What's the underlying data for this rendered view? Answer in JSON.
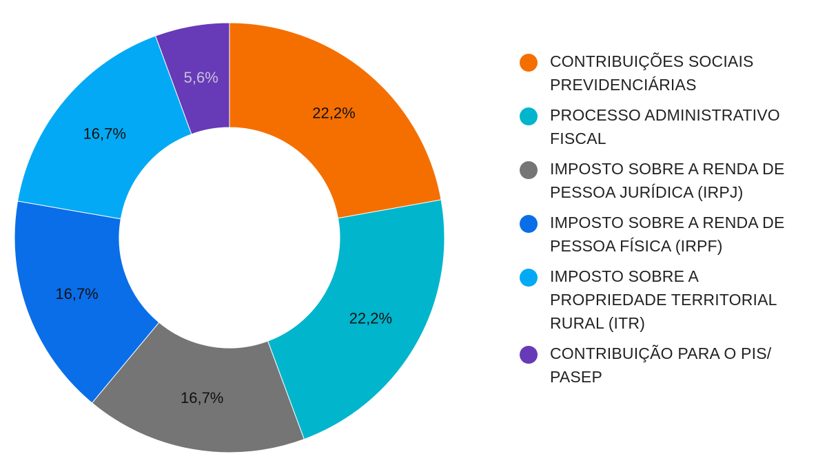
{
  "chart_data": {
    "type": "pie",
    "title": "",
    "legend_position": "right",
    "series": [
      {
        "name": "CONTRIBUIÇÕES SOCIAIS PREVIDENCIÁRIAS",
        "value": 22.2,
        "label": "22,2%",
        "color": "#f56f00",
        "label_color": "#111111"
      },
      {
        "name": "PROCESSO ADMINISTRATIVO FISCAL",
        "value": 22.2,
        "label": "22,2%",
        "color": "#00b5cc",
        "label_color": "#111111"
      },
      {
        "name": "IMPOSTO SOBRE A RENDA DE PESSOA JURÍDICA (IRPJ)",
        "value": 16.7,
        "label": "16,7%",
        "color": "#757575",
        "label_color": "#111111"
      },
      {
        "name": "IMPOSTO SOBRE A RENDA DE PESSOA FÍSICA (IRPF)",
        "value": 16.7,
        "label": "16,7%",
        "color": "#0a6ee9",
        "label_color": "#111111"
      },
      {
        "name": "IMPOSTO SOBRE A PROPRIEDADE TERRITORIAL RURAL (ITR)",
        "value": 16.7,
        "label": "16,7%",
        "color": "#03a9f4",
        "label_color": "#111111"
      },
      {
        "name": "CONTRIBUIÇÃO PARA O PIS/ PASEP",
        "value": 5.6,
        "label": "5,6%",
        "color": "#673ab7",
        "label_color": "#c9c2dd"
      }
    ]
  }
}
